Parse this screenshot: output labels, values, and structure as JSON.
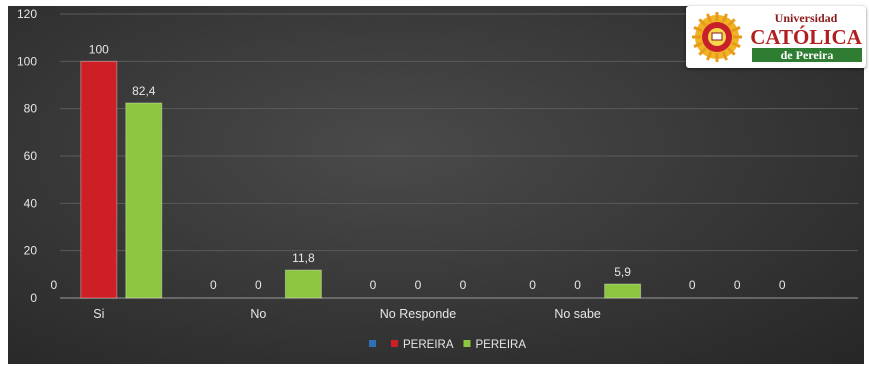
{
  "chart_data": {
    "type": "bar",
    "categories": [
      "Si",
      "No",
      "No Responde",
      "No sabe",
      ""
    ],
    "series": [
      {
        "name": "",
        "color": "#2f6fb8",
        "values": [
          0,
          0,
          0,
          0,
          0
        ]
      },
      {
        "name": "PEREIRA",
        "color": "#cf1f26",
        "values": [
          100,
          0,
          0,
          0,
          0
        ]
      },
      {
        "name": "PEREIRA",
        "color": "#8cc63e",
        "values": [
          82.4,
          11.8,
          0,
          5.9,
          0
        ]
      }
    ],
    "data_labels": [
      [
        "0",
        "0",
        "0",
        "0",
        "0"
      ],
      [
        "100",
        "0",
        "0",
        "0",
        "0"
      ],
      [
        "82,4",
        "11,8",
        "0",
        "5,9",
        "0"
      ]
    ],
    "yticks": [
      "0",
      "20",
      "40",
      "60",
      "80",
      "100",
      "120"
    ],
    "ylim": [
      0,
      120
    ],
    "legend_position": "bottom",
    "grid": true,
    "title": "",
    "xlabel": "",
    "ylabel": ""
  },
  "logo": {
    "line1": "Universidad",
    "line2": "CATÓLICA",
    "line3": "de Pereira"
  }
}
